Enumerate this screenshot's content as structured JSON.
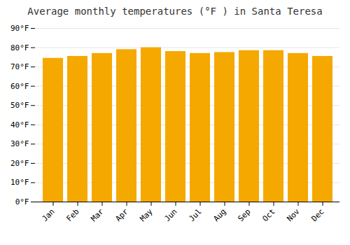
{
  "chart_data": {
    "type": "bar",
    "title": "Average monthly temperatures (°F ) in Santa Teresa",
    "categories": [
      "Jan",
      "Feb",
      "Mar",
      "Apr",
      "May",
      "Jun",
      "Jul",
      "Aug",
      "Sep",
      "Oct",
      "Nov",
      "Dec"
    ],
    "values": [
      74.5,
      75.5,
      77.0,
      79.0,
      80.0,
      78.0,
      77.0,
      77.5,
      78.5,
      78.5,
      77.0,
      75.5
    ],
    "color": "#F5A800",
    "ylim": [
      0,
      90
    ],
    "yticks": [
      {
        "value": 0,
        "label": "0°F"
      },
      {
        "value": 10,
        "label": "10°F"
      },
      {
        "value": 20,
        "label": "20°F"
      },
      {
        "value": 30,
        "label": "30°F"
      },
      {
        "value": 40,
        "label": "40°F"
      },
      {
        "value": 50,
        "label": "50°F"
      },
      {
        "value": 60,
        "label": "60°F"
      },
      {
        "value": 70,
        "label": "70°F"
      },
      {
        "value": 80,
        "label": "80°F"
      },
      {
        "value": 90,
        "label": "90°F"
      }
    ],
    "grid": true
  }
}
